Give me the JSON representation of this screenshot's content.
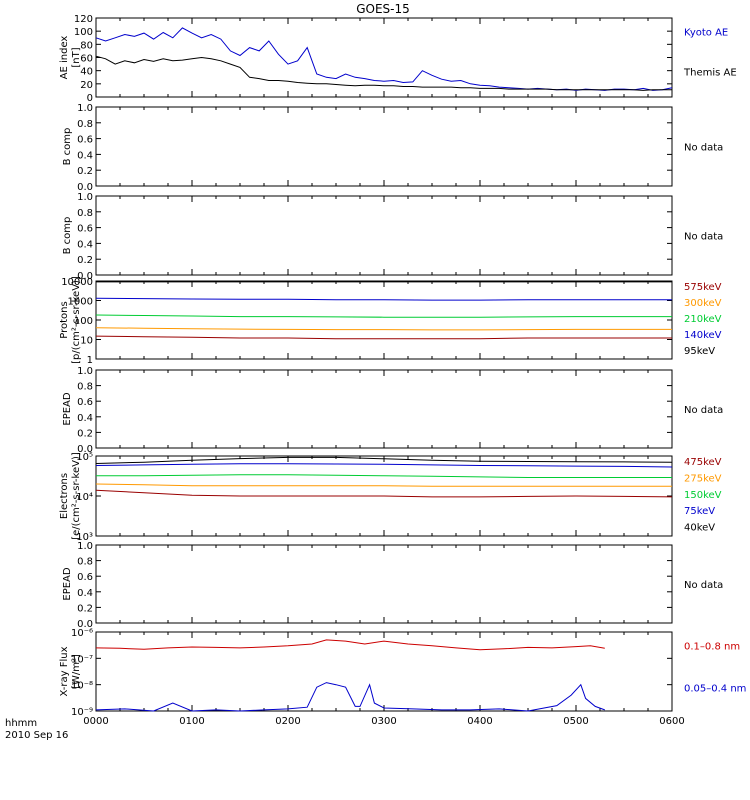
{
  "chart_data": {
    "title": "GOES-15",
    "x_axis": {
      "range": [
        "0000",
        "0600"
      ],
      "ticks": [
        "0000",
        "0100",
        "0200",
        "0300",
        "0400",
        "0500",
        "0600"
      ],
      "label_line1": "hhmm",
      "label_line2": "2010 Sep 16"
    },
    "panels": [
      {
        "id": "ae",
        "type": "line",
        "ylabel": "AE index",
        "yunit": "[nT]",
        "scale": "linear",
        "ylim": [
          0,
          120
        ],
        "yticks": [
          "0",
          "20",
          "40",
          "60",
          "80",
          "100",
          "120"
        ],
        "series": [
          {
            "name": "Kyoto AE",
            "color": "#0000cc",
            "x": [
              0,
              0.1,
              0.2,
              0.3,
              0.4,
              0.5,
              0.6,
              0.7,
              0.8,
              0.9,
              1.0,
              1.1,
              1.2,
              1.3,
              1.4,
              1.5,
              1.6,
              1.7,
              1.8,
              1.9,
              2.0,
              2.1,
              2.2,
              2.3,
              2.4,
              2.5,
              2.6,
              2.7,
              2.8,
              2.9,
              3.0,
              3.1,
              3.2,
              3.3,
              3.4,
              3.5,
              3.6,
              3.7,
              3.8,
              3.9,
              4.0,
              4.1,
              4.2,
              4.3,
              4.4,
              4.5,
              4.6,
              4.7,
              4.8,
              4.9,
              5.0,
              5.1,
              5.2,
              5.3,
              5.4,
              5.5,
              5.6,
              5.7,
              5.8,
              5.9,
              6.0
            ],
            "values": [
              90,
              85,
              90,
              95,
              92,
              97,
              88,
              98,
              90,
              105,
              97,
              90,
              95,
              88,
              70,
              63,
              75,
              70,
              85,
              65,
              50,
              55,
              75,
              35,
              30,
              28,
              35,
              30,
              28,
              25,
              24,
              25,
              22,
              23,
              40,
              33,
              27,
              24,
              25,
              20,
              18,
              17,
              15,
              14,
              13,
              12,
              13,
              12,
              11,
              12,
              10,
              12,
              11,
              10,
              12,
              12,
              11,
              13,
              10,
              11,
              14
            ]
          },
          {
            "name": "Themis AE",
            "color": "#000000",
            "x": [
              0,
              0.1,
              0.2,
              0.3,
              0.4,
              0.5,
              0.6,
              0.7,
              0.8,
              0.9,
              1.0,
              1.1,
              1.2,
              1.3,
              1.4,
              1.5,
              1.6,
              1.7,
              1.8,
              1.9,
              2.0,
              2.1,
              2.2,
              2.3,
              2.4,
              2.5,
              2.6,
              2.7,
              2.8,
              2.9,
              3.0,
              3.1,
              3.2,
              3.3,
              3.4,
              3.5,
              3.6,
              3.7,
              3.8,
              3.9,
              4.0,
              4.1,
              4.2,
              4.3,
              4.4,
              4.5,
              4.6,
              4.7,
              4.8,
              4.9,
              5.0,
              5.1,
              5.2,
              5.3,
              5.4,
              5.5,
              5.6,
              5.7,
              5.8,
              5.9,
              6.0
            ],
            "values": [
              62,
              58,
              50,
              55,
              52,
              57,
              54,
              58,
              55,
              56,
              58,
              60,
              58,
              55,
              50,
              45,
              30,
              28,
              25,
              25,
              24,
              22,
              21,
              20,
              20,
              19,
              18,
              17,
              18,
              18,
              17,
              17,
              16,
              16,
              15,
              15,
              15,
              15,
              14,
              14,
              13,
              13,
              13,
              12,
              12,
              12,
              12,
              12,
              11,
              11,
              11,
              11,
              11,
              11,
              11,
              11,
              11,
              10,
              11,
              11,
              11
            ]
          }
        ]
      },
      {
        "id": "bcomp1",
        "type": "empty",
        "ylabel": "B comp",
        "scale": "linear",
        "ylim": [
          0,
          1
        ],
        "yticks": [
          "0.0",
          "0.2",
          "0.4",
          "0.6",
          "0.8",
          "1.0"
        ],
        "no_data_text": "No data"
      },
      {
        "id": "bcomp2",
        "type": "empty",
        "ylabel": "B comp",
        "scale": "linear",
        "ylim": [
          0,
          1
        ],
        "yticks": [
          "0.0",
          "0.2",
          "0.4",
          "0.6",
          "0.8",
          "1.0"
        ],
        "no_data_text": "No data"
      },
      {
        "id": "protons",
        "type": "line",
        "ylabel": "Protons",
        "yunit": "[p/(cm²-s-sr-keV)]",
        "scale": "log",
        "ylim": [
          1,
          10000
        ],
        "yticks": [
          "1",
          "10",
          "100",
          "1000",
          "10000"
        ],
        "series": [
          {
            "name": "575keV",
            "color": "#990000",
            "x": [
              0,
              0.5,
              1.0,
              1.5,
              2.0,
              2.5,
              3.0,
              3.5,
              4.0,
              4.5,
              5.0,
              5.5,
              6.0
            ],
            "values": [
              15,
              14,
              13,
              12,
              12,
              11,
              11,
              11,
              11,
              12,
              12,
              12,
              12
            ]
          },
          {
            "name": "300keV",
            "color": "#ff9900",
            "x": [
              0,
              0.5,
              1.0,
              1.5,
              2.0,
              2.5,
              3.0,
              3.5,
              4.0,
              4.5,
              5.0,
              5.5,
              6.0
            ],
            "values": [
              40,
              38,
              36,
              34,
              33,
              32,
              32,
              31,
              31,
              32,
              33,
              33,
              33
            ]
          },
          {
            "name": "210keV",
            "color": "#00cc33",
            "x": [
              0,
              0.5,
              1.0,
              1.5,
              2.0,
              2.5,
              3.0,
              3.5,
              4.0,
              4.5,
              5.0,
              5.5,
              6.0
            ],
            "values": [
              180,
              170,
              160,
              150,
              150,
              145,
              140,
              140,
              140,
              145,
              150,
              150,
              150
            ]
          },
          {
            "name": "140keV",
            "color": "#0000cc",
            "x": [
              0,
              0.5,
              1.0,
              1.5,
              2.0,
              2.5,
              3.0,
              3.5,
              4.0,
              4.5,
              5.0,
              5.5,
              6.0
            ],
            "values": [
              1300,
              1250,
              1200,
              1150,
              1150,
              1100,
              1100,
              1050,
              1050,
              1100,
              1100,
              1100,
              1100
            ]
          },
          {
            "name": "95keV",
            "color": "#000000",
            "x": [
              0,
              0.5,
              1.0,
              1.5,
              2.0,
              2.5,
              3.0,
              3.5,
              4.0,
              4.5,
              5.0,
              5.5,
              6.0
            ],
            "values": [
              9000,
              9000,
              9000,
              9000,
              9000,
              9000,
              9000,
              9000,
              9000,
              9000,
              9000,
              9000,
              9000
            ]
          }
        ]
      },
      {
        "id": "epead1",
        "type": "empty",
        "ylabel": "EPEAD",
        "scale": "linear",
        "ylim": [
          0,
          1
        ],
        "yticks": [
          "0.0",
          "0.2",
          "0.4",
          "0.6",
          "0.8",
          "1.0"
        ],
        "no_data_text": "No data"
      },
      {
        "id": "electrons",
        "type": "line",
        "ylabel": "Electrons",
        "yunit": "[e/(cm²-s-sr-keV)]",
        "scale": "log",
        "ylim": [
          1000,
          100000
        ],
        "yticks": [
          "10³",
          "10⁴",
          "10⁵"
        ],
        "series": [
          {
            "name": "475keV",
            "color": "#990000",
            "x": [
              0,
              0.5,
              1.0,
              1.5,
              2.0,
              2.5,
              3.0,
              3.5,
              4.0,
              4.5,
              5.0,
              5.5,
              6.0
            ],
            "values": [
              14000,
              12000,
              10500,
              10000,
              10000,
              10000,
              10000,
              9500,
              9500,
              9800,
              10000,
              9800,
              9500
            ]
          },
          {
            "name": "275keV",
            "color": "#ff9900",
            "x": [
              0,
              0.5,
              1.0,
              1.5,
              2.0,
              2.5,
              3.0,
              3.5,
              4.0,
              4.5,
              5.0,
              5.5,
              6.0
            ],
            "values": [
              20000,
              19000,
              18000,
              18000,
              18000,
              18000,
              18000,
              17500,
              17500,
              17500,
              17500,
              17500,
              17500
            ]
          },
          {
            "name": "150keV",
            "color": "#00cc33",
            "x": [
              0,
              0.5,
              1.0,
              1.5,
              2.0,
              2.5,
              3.0,
              3.5,
              4.0,
              4.5,
              5.0,
              5.5,
              6.0
            ],
            "values": [
              32000,
              32000,
              33000,
              34000,
              34000,
              33000,
              32000,
              31000,
              30000,
              29000,
              29000,
              29000,
              29000
            ]
          },
          {
            "name": "75keV",
            "color": "#0000cc",
            "x": [
              0,
              0.5,
              1.0,
              1.5,
              2.0,
              2.5,
              3.0,
              3.5,
              4.0,
              4.5,
              5.0,
              5.5,
              6.0
            ],
            "values": [
              58000,
              60000,
              62000,
              64000,
              64000,
              63000,
              62000,
              60000,
              58000,
              57000,
              56000,
              55000,
              53000
            ]
          },
          {
            "name": "40keV",
            "color": "#000000",
            "x": [
              0,
              0.5,
              1.0,
              1.5,
              2.0,
              2.5,
              3.0,
              3.5,
              4.0,
              4.5,
              5.0,
              5.5,
              6.0
            ],
            "values": [
              65000,
              70000,
              78000,
              86000,
              92000,
              92000,
              85000,
              78000,
              74000,
              73000,
              72000,
              71000,
              70000
            ]
          }
        ]
      },
      {
        "id": "epead2",
        "type": "empty",
        "ylabel": "EPEAD",
        "scale": "linear",
        "ylim": [
          0,
          1
        ],
        "yticks": [
          "0.0",
          "0.2",
          "0.4",
          "0.6",
          "0.8",
          "1.0"
        ],
        "no_data_text": "No data"
      },
      {
        "id": "xray",
        "type": "line",
        "ylabel": "X-ray Flux",
        "yunit": "[W/m²]",
        "scale": "log",
        "ylim": [
          1e-09,
          1e-06
        ],
        "yticks": [
          "10⁻⁹",
          "10⁻⁸",
          "10⁻⁷",
          "10⁻⁶"
        ],
        "series": [
          {
            "name": "0.1–0.8 nm",
            "color": "#cc0000",
            "x": [
              0,
              0.25,
              0.5,
              0.75,
              1.0,
              1.25,
              1.5,
              1.75,
              2.0,
              2.25,
              2.4,
              2.6,
              2.8,
              3.0,
              3.25,
              3.5,
              3.75,
              4.0,
              4.25,
              4.5,
              4.75,
              5.0,
              5.15,
              5.3
            ],
            "values": [
              2.5e-07,
              2.4e-07,
              2.2e-07,
              2.5e-07,
              2.7e-07,
              2.6e-07,
              2.5e-07,
              2.7e-07,
              3e-07,
              3.5e-07,
              5e-07,
              4.5e-07,
              3.5e-07,
              4.5e-07,
              3.5e-07,
              3e-07,
              2.5e-07,
              2.1e-07,
              2.3e-07,
              2.6e-07,
              2.5e-07,
              2.8e-07,
              3e-07,
              2.4e-07
            ]
          },
          {
            "name": "0.05–0.4 nm",
            "color": "#0000cc",
            "x": [
              0,
              0.3,
              0.6,
              0.8,
              1.0,
              1.25,
              1.5,
              1.75,
              2.0,
              2.2,
              2.3,
              2.4,
              2.5,
              2.6,
              2.7,
              2.75,
              2.85,
              2.9,
              3.0,
              3.3,
              3.6,
              3.9,
              4.2,
              4.5,
              4.8,
              4.95,
              5.05,
              5.1,
              5.2,
              5.3
            ],
            "values": [
              1.1e-09,
              1.2e-09,
              1e-09,
              2e-09,
              1e-09,
              1.1e-09,
              1e-09,
              1.1e-09,
              1.2e-09,
              1.4e-09,
              8e-09,
              1.2e-08,
              1e-08,
              8e-09,
              1.5e-09,
              1.5e-09,
              1e-08,
              2e-09,
              1.3e-09,
              1.2e-09,
              1.1e-09,
              1.1e-09,
              1.2e-09,
              1e-09,
              1.6e-09,
              4e-09,
              1e-08,
              3e-09,
              1.5e-09,
              1.1e-09
            ]
          }
        ]
      }
    ]
  }
}
